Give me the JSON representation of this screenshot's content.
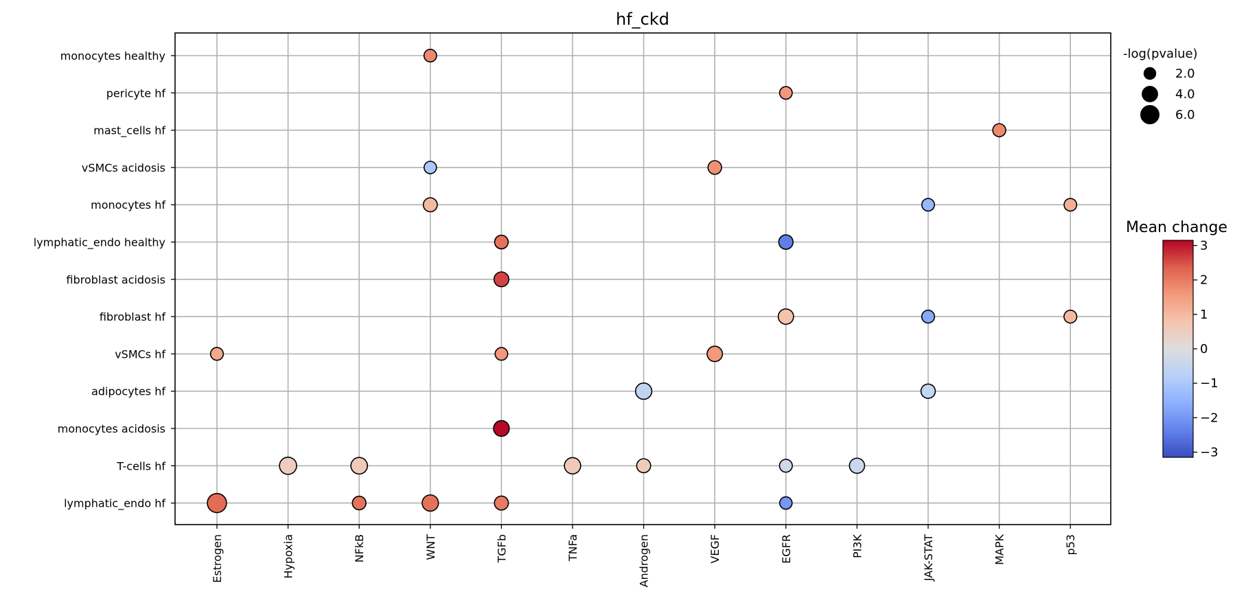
{
  "chart_data": {
    "type": "scatter",
    "title": "hf_ckd",
    "x_categories": [
      "Estrogen",
      "Hypoxia",
      "NFkB",
      "WNT",
      "TGFb",
      "TNFa",
      "Androgen",
      "VEGF",
      "EGFR",
      "PI3K",
      "JAK-STAT",
      "MAPK",
      "p53"
    ],
    "y_categories": [
      "monocytes healthy",
      "pericyte hf",
      "mast_cells hf",
      "vSMCs acidosis",
      "monocytes hf",
      "lymphatic_endo healthy",
      "fibroblast acidosis",
      "fibroblast hf",
      "vSMCs hf",
      "adipocytes hf",
      "monocytes acidosis",
      "T-cells hf",
      "lymphatic_endo hf"
    ],
    "size_legend": {
      "title": "-log(pvalue)",
      "entries": [
        {
          "label": "2.0",
          "value": 2.0
        },
        {
          "label": "4.0",
          "value": 4.0
        },
        {
          "label": "6.0",
          "value": 6.0
        }
      ]
    },
    "colorbar": {
      "title": "Mean change",
      "min": -3.15,
      "max": 3.15,
      "ticks": [
        {
          "value": 3,
          "label": "3"
        },
        {
          "value": 2,
          "label": "2"
        },
        {
          "value": 1,
          "label": "1"
        },
        {
          "value": 0,
          "label": "0"
        },
        {
          "value": -1,
          "label": "−1"
        },
        {
          "value": -2,
          "label": "−2"
        },
        {
          "value": -3,
          "label": "−3"
        }
      ],
      "colormap": "coolwarm"
    },
    "grid": true,
    "points": [
      {
        "x": "WNT",
        "y": "monocytes healthy",
        "mean_change": 1.8,
        "neg_log_pvalue": 2.3
      },
      {
        "x": "EGFR",
        "y": "pericyte hf",
        "mean_change": 1.6,
        "neg_log_pvalue": 2.3
      },
      {
        "x": "MAPK",
        "y": "mast_cells hf",
        "mean_change": 1.8,
        "neg_log_pvalue": 2.5
      },
      {
        "x": "WNT",
        "y": "vSMCs acidosis",
        "mean_change": -1.0,
        "neg_log_pvalue": 2.2
      },
      {
        "x": "VEGF",
        "y": "vSMCs acidosis",
        "mean_change": 1.7,
        "neg_log_pvalue": 2.8
      },
      {
        "x": "WNT",
        "y": "monocytes hf",
        "mean_change": 1.0,
        "neg_log_pvalue": 3.0
      },
      {
        "x": "JAK-STAT",
        "y": "monocytes hf",
        "mean_change": -1.4,
        "neg_log_pvalue": 2.3
      },
      {
        "x": "p53",
        "y": "monocytes hf",
        "mean_change": 1.2,
        "neg_log_pvalue": 2.3
      },
      {
        "x": "TGFb",
        "y": "lymphatic_endo healthy",
        "mean_change": 2.1,
        "neg_log_pvalue": 2.8
      },
      {
        "x": "EGFR",
        "y": "lymphatic_endo healthy",
        "mean_change": -2.4,
        "neg_log_pvalue": 3.2
      },
      {
        "x": "TGFb",
        "y": "fibroblast acidosis",
        "mean_change": 2.6,
        "neg_log_pvalue": 3.5
      },
      {
        "x": "EGFR",
        "y": "fibroblast hf",
        "mean_change": 0.8,
        "neg_log_pvalue": 3.8
      },
      {
        "x": "JAK-STAT",
        "y": "fibroblast hf",
        "mean_change": -1.7,
        "neg_log_pvalue": 2.4
      },
      {
        "x": "p53",
        "y": "fibroblast hf",
        "mean_change": 1.0,
        "neg_log_pvalue": 2.4
      },
      {
        "x": "Estrogen",
        "y": "vSMCs hf",
        "mean_change": 1.3,
        "neg_log_pvalue": 2.4
      },
      {
        "x": "TGFb",
        "y": "vSMCs hf",
        "mean_change": 1.6,
        "neg_log_pvalue": 2.3
      },
      {
        "x": "VEGF",
        "y": "vSMCs hf",
        "mean_change": 1.6,
        "neg_log_pvalue": 3.8
      },
      {
        "x": "Androgen",
        "y": "adipocytes hf",
        "mean_change": -0.6,
        "neg_log_pvalue": 4.4
      },
      {
        "x": "JAK-STAT",
        "y": "adipocytes hf",
        "mean_change": -0.5,
        "neg_log_pvalue": 3.2
      },
      {
        "x": "TGFb",
        "y": "monocytes acidosis",
        "mean_change": 3.1,
        "neg_log_pvalue": 4.0
      },
      {
        "x": "Hypoxia",
        "y": "T-cells hf",
        "mean_change": 0.5,
        "neg_log_pvalue": 5.0
      },
      {
        "x": "NFkB",
        "y": "T-cells hf",
        "mean_change": 0.6,
        "neg_log_pvalue": 4.6
      },
      {
        "x": "TNFa",
        "y": "T-cells hf",
        "mean_change": 0.6,
        "neg_log_pvalue": 4.4
      },
      {
        "x": "Androgen",
        "y": "T-cells hf",
        "mean_change": 0.6,
        "neg_log_pvalue": 3.0
      },
      {
        "x": "EGFR",
        "y": "T-cells hf",
        "mean_change": -0.3,
        "neg_log_pvalue": 2.4
      },
      {
        "x": "PI3K",
        "y": "T-cells hf",
        "mean_change": -0.4,
        "neg_log_pvalue": 3.7
      },
      {
        "x": "Estrogen",
        "y": "lymphatic_endo hf",
        "mean_change": 2.2,
        "neg_log_pvalue": 6.5
      },
      {
        "x": "NFkB",
        "y": "lymphatic_endo hf",
        "mean_change": 2.1,
        "neg_log_pvalue": 2.8
      },
      {
        "x": "WNT",
        "y": "lymphatic_endo hf",
        "mean_change": 2.1,
        "neg_log_pvalue": 4.4
      },
      {
        "x": "TGFb",
        "y": "lymphatic_endo hf",
        "mean_change": 2.0,
        "neg_log_pvalue": 3.0
      },
      {
        "x": "EGFR",
        "y": "lymphatic_endo hf",
        "mean_change": -2.0,
        "neg_log_pvalue": 2.2
      }
    ]
  }
}
